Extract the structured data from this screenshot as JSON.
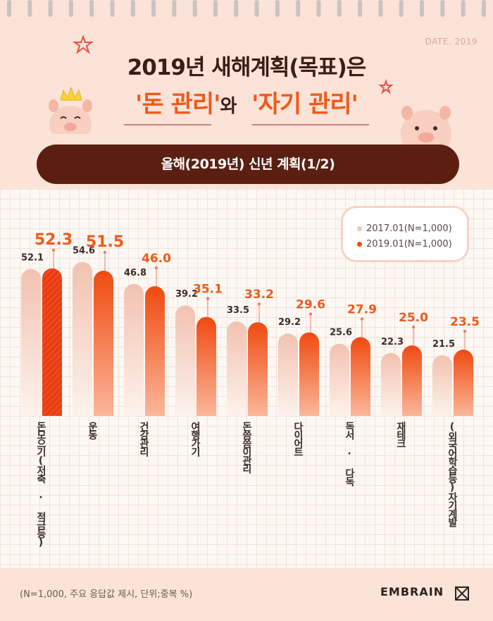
{
  "header": {
    "date": "DATE. 2019",
    "title_line1": "2019년 새해계획(목표)은",
    "title_hl1": "'돈 관리'",
    "title_mid": "와",
    "title_hl2": "'자기 관리'",
    "banner": "올해(2019년) 신년 계획(1/2)"
  },
  "chart_data": {
    "type": "bar",
    "title": "올해(2019년) 신년 계획(1/2)",
    "categories": [
      "돈모으기(저축 · 적금등)",
      "운동",
      "건강관리",
      "여행가기",
      "돈씀씀이관리",
      "다이어트",
      "독서 · 다독",
      "재테크",
      "(외국어학습등)자기계발"
    ],
    "series": [
      {
        "name": "2017.01(N=1,000)",
        "values": [
          52.1,
          54.6,
          46.8,
          39.2,
          33.5,
          29.2,
          25.6,
          22.3,
          21.5
        ]
      },
      {
        "name": "2019.01(N=1,000)",
        "values": [
          52.3,
          51.5,
          46.0,
          35.1,
          33.2,
          29.6,
          27.9,
          25.0,
          23.5
        ]
      }
    ],
    "colors": {
      "series1": "#f2c7b6",
      "series2": "#f04c12",
      "label2": "#f05a1a",
      "label1": "#3a2d29"
    },
    "legend_position": "top-right",
    "grid": true,
    "unit": "%"
  },
  "footer": {
    "note": "(N=1,000, 주요 응답값 제시, 단위;중복 %)",
    "brand": "EMBRAIN"
  }
}
